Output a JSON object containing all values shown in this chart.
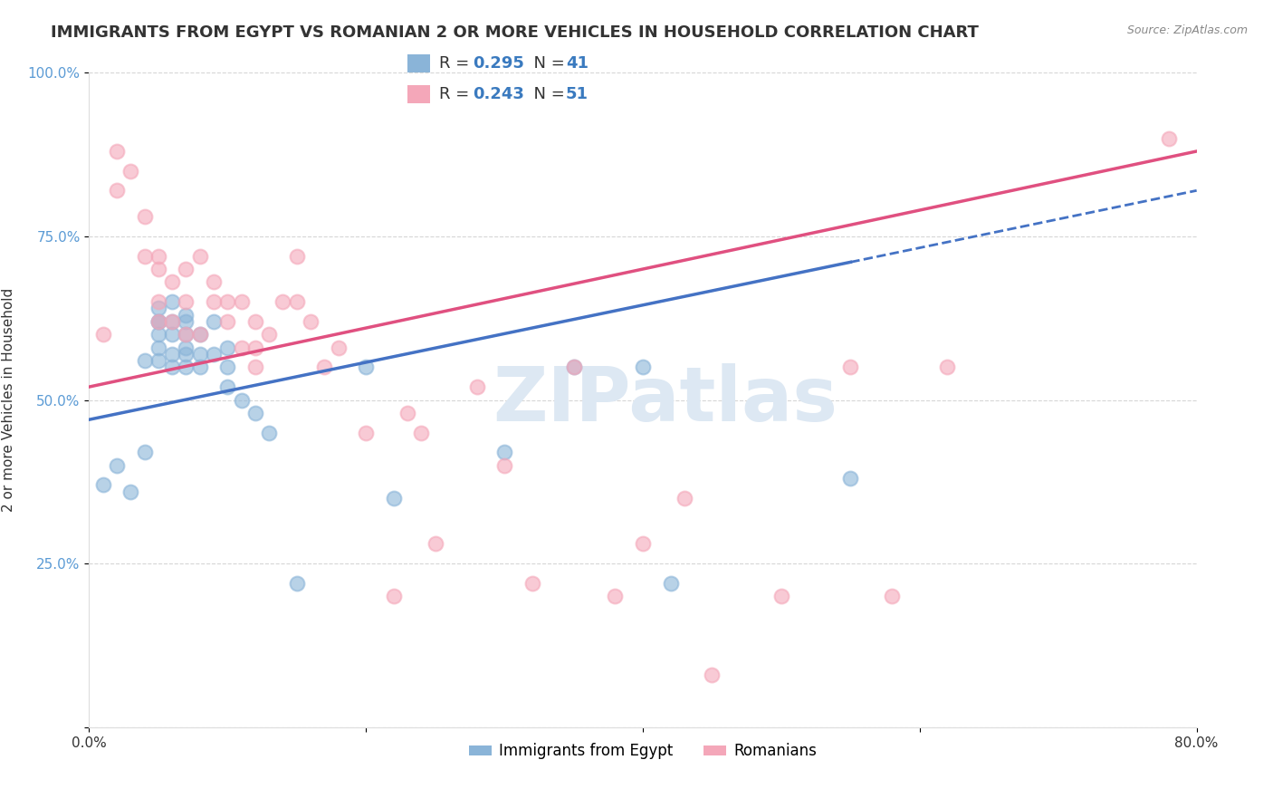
{
  "title": "IMMIGRANTS FROM EGYPT VS ROMANIAN 2 OR MORE VEHICLES IN HOUSEHOLD CORRELATION CHART",
  "source": "Source: ZipAtlas.com",
  "ylabel": "2 or more Vehicles in Household",
  "xlabel": "",
  "xlim": [
    0.0,
    0.8
  ],
  "ylim": [
    0.0,
    1.0
  ],
  "xticks": [
    0.0,
    0.2,
    0.4,
    0.6,
    0.8
  ],
  "xtick_labels": [
    "0.0%",
    "",
    "",
    "",
    "80.0%"
  ],
  "yticks": [
    0.0,
    0.25,
    0.5,
    0.75,
    1.0
  ],
  "ytick_labels": [
    "",
    "25.0%",
    "50.0%",
    "75.0%",
    "100.0%"
  ],
  "R_egypt": 0.295,
  "N_egypt": 41,
  "R_romanian": 0.243,
  "N_romanian": 51,
  "color_egypt": "#8ab4d8",
  "color_romanian": "#f4a7b9",
  "trendline_color_egypt": "#4472c4",
  "trendline_color_romanian": "#e05080",
  "legend_labels": [
    "Immigrants from Egypt",
    "Romanians"
  ],
  "egypt_x": [
    0.01,
    0.02,
    0.03,
    0.04,
    0.04,
    0.05,
    0.05,
    0.05,
    0.05,
    0.05,
    0.05,
    0.06,
    0.06,
    0.06,
    0.06,
    0.06,
    0.07,
    0.07,
    0.07,
    0.07,
    0.07,
    0.07,
    0.08,
    0.08,
    0.08,
    0.09,
    0.09,
    0.1,
    0.1,
    0.1,
    0.11,
    0.12,
    0.13,
    0.15,
    0.2,
    0.22,
    0.3,
    0.35,
    0.4,
    0.42,
    0.55
  ],
  "egypt_y": [
    0.37,
    0.4,
    0.36,
    0.56,
    0.42,
    0.62,
    0.6,
    0.56,
    0.58,
    0.64,
    0.62,
    0.6,
    0.57,
    0.55,
    0.62,
    0.65,
    0.62,
    0.6,
    0.63,
    0.57,
    0.55,
    0.58,
    0.6,
    0.57,
    0.55,
    0.57,
    0.62,
    0.58,
    0.52,
    0.55,
    0.5,
    0.48,
    0.45,
    0.22,
    0.55,
    0.35,
    0.42,
    0.55,
    0.55,
    0.22,
    0.38
  ],
  "romanian_x": [
    0.01,
    0.02,
    0.02,
    0.03,
    0.04,
    0.04,
    0.05,
    0.05,
    0.05,
    0.05,
    0.06,
    0.06,
    0.07,
    0.07,
    0.07,
    0.08,
    0.08,
    0.09,
    0.09,
    0.1,
    0.1,
    0.11,
    0.11,
    0.12,
    0.12,
    0.12,
    0.13,
    0.14,
    0.15,
    0.15,
    0.16,
    0.17,
    0.18,
    0.2,
    0.22,
    0.23,
    0.24,
    0.25,
    0.28,
    0.3,
    0.32,
    0.35,
    0.38,
    0.4,
    0.43,
    0.45,
    0.5,
    0.55,
    0.58,
    0.62,
    0.78
  ],
  "romanian_y": [
    0.6,
    0.88,
    0.82,
    0.85,
    0.78,
    0.72,
    0.7,
    0.65,
    0.72,
    0.62,
    0.68,
    0.62,
    0.65,
    0.6,
    0.7,
    0.6,
    0.72,
    0.65,
    0.68,
    0.62,
    0.65,
    0.65,
    0.58,
    0.62,
    0.55,
    0.58,
    0.6,
    0.65,
    0.65,
    0.72,
    0.62,
    0.55,
    0.58,
    0.45,
    0.2,
    0.48,
    0.45,
    0.28,
    0.52,
    0.4,
    0.22,
    0.55,
    0.2,
    0.28,
    0.35,
    0.08,
    0.2,
    0.55,
    0.2,
    0.55,
    0.9
  ],
  "background_color": "#ffffff",
  "grid_color": "#cccccc",
  "title_fontsize": 13,
  "axis_fontsize": 11,
  "legend_fontsize": 12,
  "watermark_text": "ZIPatlas",
  "watermark_color": "#dde8f3"
}
